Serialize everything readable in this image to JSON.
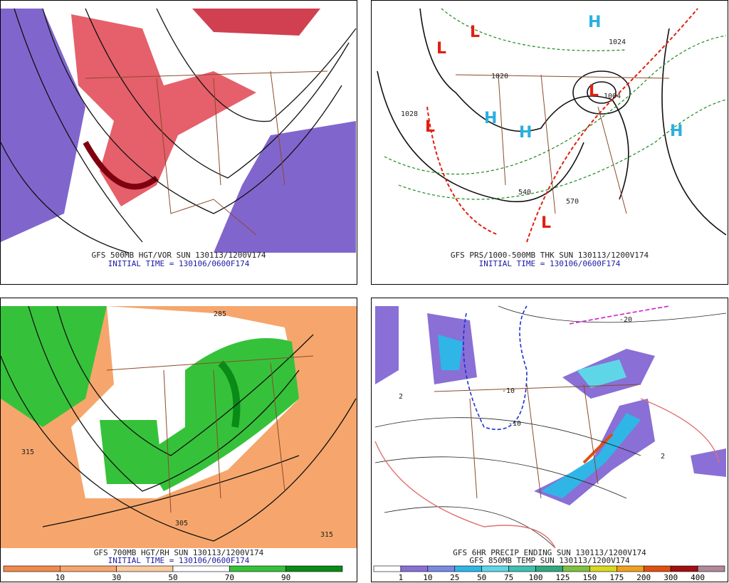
{
  "panels": [
    {
      "caption": [
        "GFS 500MB HGT/VOR SUN 130113/1200V174",
        "INITIAL TIME = 130106/0600F174"
      ]
    },
    {
      "caption": [
        "GFS PRS/1000-500MB THK SUN 130113/1200V174",
        "INITIAL TIME = 130106/0600F174"
      ],
      "highs": [
        "H",
        "H",
        "H",
        "H"
      ],
      "lows": [
        "L",
        "L",
        "L",
        "L",
        "L"
      ],
      "contour_labels": [
        "1020",
        "1028",
        "1024",
        "1004",
        "540",
        "570"
      ]
    },
    {
      "caption": [
        "GFS 700MB HGT/RH SUN 130113/1200V174",
        "INITIAL TIME = 130106/0600F174"
      ],
      "colorbar": {
        "colors": [
          "#ef8a4c",
          "#f6a66c",
          "#f9c9a0",
          "#ffffff",
          "#35c23a",
          "#0a8a16"
        ],
        "labels": [
          10,
          30,
          50,
          70,
          90
        ]
      },
      "contour_labels": [
        "285",
        "315",
        "315",
        "305"
      ]
    },
    {
      "caption": [
        "GFS 6HR PRECIP ENDING SUN 130113/1200V174",
        "GFS 850MB TEMP SUN 130113/1200V174"
      ],
      "colorbar": {
        "colors": [
          "#ffffff",
          "#8a6fd6",
          "#7a8ae0",
          "#2fb6e6",
          "#5fd6e8",
          "#3fc0b0",
          "#30a880",
          "#80c040",
          "#d8d820",
          "#f0a020",
          "#e05010",
          "#a01010",
          "#b08898"
        ],
        "labels": [
          1,
          10,
          25,
          50,
          75,
          100,
          125,
          150,
          175,
          200,
          300,
          400
        ]
      },
      "contour_labels": [
        "-20",
        "-10",
        "-10",
        "2",
        "2"
      ]
    }
  ]
}
